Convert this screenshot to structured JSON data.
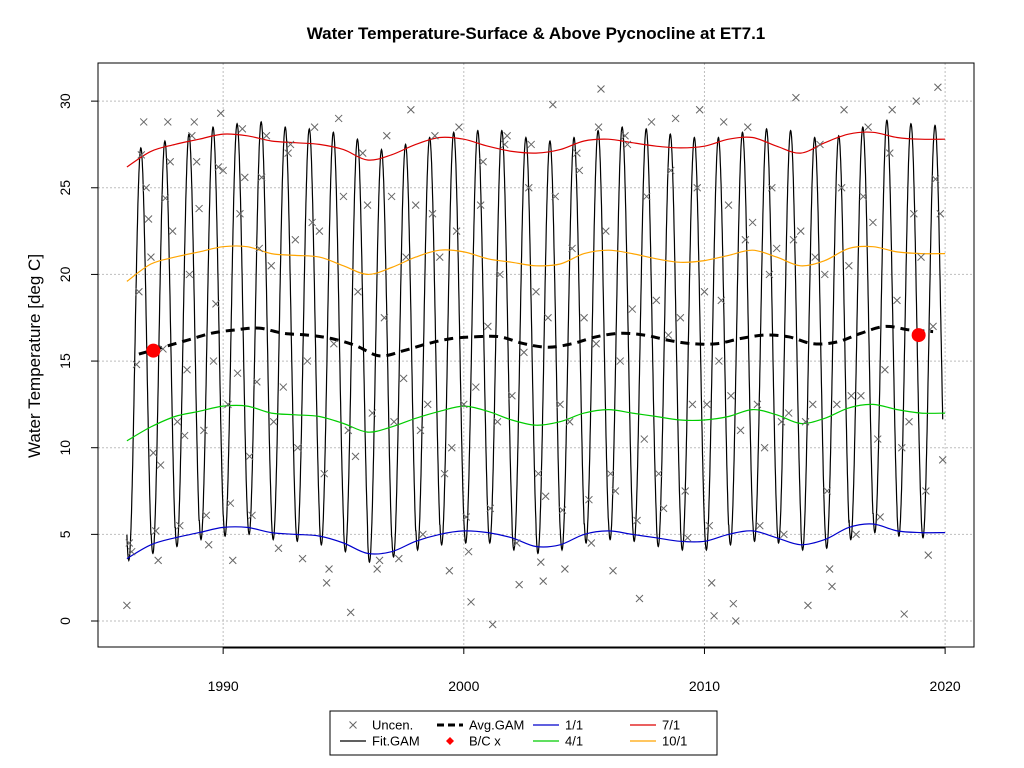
{
  "chart_data": {
    "type": "line",
    "title": "Water Temperature-Surface & Above Pycnocline at ET7.1",
    "xlabel": "",
    "ylabel": "Water Temperature [deg C]",
    "xlim": [
      1984.8,
      2021.2
    ],
    "ylim": [
      -1.5,
      32.2
    ],
    "x_ticks": [
      1990,
      2000,
      2010,
      2020
    ],
    "x_tick_labels": [
      "1990",
      "2000",
      "2010",
      "2020"
    ],
    "y_ticks": [
      0,
      5,
      10,
      15,
      20,
      25,
      30
    ],
    "y_tick_labels": [
      "0",
      "5",
      "10",
      "15",
      "20",
      "25",
      "30"
    ],
    "grid": true,
    "legend_position": "bottom-center",
    "colors": {
      "fit": "#000000",
      "avg": "#000000",
      "p1_1": "#0000cc",
      "p4_1": "#00cc00",
      "p7_1": "#dd0000",
      "p10_1": "#ffa500",
      "bc": "#ff0000",
      "uncen": "#666666",
      "grid": "#bebebe"
    },
    "legend": [
      {
        "key": "uncen",
        "label": "Uncen.",
        "symbol": "x",
        "color": "#666666"
      },
      {
        "key": "fit",
        "label": "Fit.GAM",
        "symbol": "line",
        "color": "#000000"
      },
      {
        "key": "avg",
        "label": "Avg.GAM",
        "symbol": "dashed",
        "color": "#000000"
      },
      {
        "key": "bc",
        "label": "B/C x",
        "symbol": "point",
        "color": "#ff0000"
      },
      {
        "key": "p1_1",
        "label": "1/1",
        "symbol": "line",
        "color": "#0000cc"
      },
      {
        "key": "p4_1",
        "label": "4/1",
        "symbol": "line",
        "color": "#00cc00"
      },
      {
        "key": "p7_1",
        "label": "7/1",
        "symbol": "line",
        "color": "#dd0000"
      },
      {
        "key": "p10_1",
        "label": "10/1",
        "symbol": "line",
        "color": "#ffa500"
      }
    ],
    "series": [
      {
        "name": "Avg.GAM",
        "x": [
          1986.5,
          1987.5,
          1988.5,
          1989.5,
          1990.5,
          1991.5,
          1992.5,
          1993.5,
          1994.5,
          1995.5,
          1996.5,
          1997.5,
          1998.5,
          1999.5,
          2000.5,
          2001.5,
          2002.5,
          2003.5,
          2004.5,
          2005.5,
          2006.5,
          2007.5,
          2008.5,
          2009.5,
          2010.5,
          2011.5,
          2012.5,
          2013.5,
          2014.5,
          2015.5,
          2016.5,
          2017.5,
          2018.5,
          2019.5
        ],
        "y": [
          15.4,
          15.8,
          16.2,
          16.6,
          16.8,
          16.9,
          16.6,
          16.5,
          16.3,
          15.9,
          15.3,
          15.6,
          16.0,
          16.3,
          16.4,
          16.4,
          16.0,
          15.8,
          16.0,
          16.4,
          16.6,
          16.5,
          16.2,
          16.0,
          16.0,
          16.3,
          16.5,
          16.4,
          16.0,
          16.1,
          16.6,
          17.0,
          16.8,
          16.7
        ]
      },
      {
        "name": "1/1",
        "x": [
          1986,
          1987,
          1988,
          1989,
          1990,
          1991,
          1992,
          1993,
          1994,
          1995,
          1996,
          1997,
          1998,
          1999,
          2000,
          2001,
          2002,
          2003,
          2004,
          2005,
          2006,
          2007,
          2008,
          2009,
          2010,
          2011,
          2012,
          2013,
          2014,
          2015,
          2016,
          2017,
          2018,
          2019,
          2020
        ],
        "y": [
          3.6,
          4.4,
          4.8,
          5.1,
          5.4,
          5.4,
          5.1,
          5.0,
          4.9,
          4.5,
          3.9,
          4.0,
          4.6,
          5.0,
          5.2,
          5.1,
          4.8,
          4.3,
          4.4,
          5.0,
          5.2,
          5.0,
          4.8,
          4.6,
          4.6,
          5.0,
          5.2,
          4.8,
          4.4,
          4.7,
          5.4,
          5.6,
          5.2,
          5.1,
          5.1
        ]
      },
      {
        "name": "4/1",
        "x": [
          1986,
          1987,
          1988,
          1989,
          1990,
          1991,
          1992,
          1993,
          1994,
          1995,
          1996,
          1997,
          1998,
          1999,
          2000,
          2001,
          2002,
          2003,
          2004,
          2005,
          2006,
          2007,
          2008,
          2009,
          2010,
          2011,
          2012,
          2013,
          2014,
          2015,
          2016,
          2017,
          2018,
          2019,
          2020
        ],
        "y": [
          10.4,
          11.2,
          11.8,
          12.1,
          12.4,
          12.4,
          12.0,
          11.9,
          11.8,
          11.4,
          10.9,
          11.2,
          11.7,
          12.1,
          12.4,
          12.1,
          11.6,
          11.3,
          11.5,
          12.0,
          12.2,
          12.0,
          11.8,
          11.6,
          11.6,
          11.8,
          12.2,
          11.9,
          11.4,
          11.7,
          12.3,
          12.5,
          12.2,
          12.0,
          12.0
        ]
      },
      {
        "name": "7/1",
        "x": [
          1986,
          1987,
          1988,
          1989,
          1990,
          1991,
          1992,
          1993,
          1994,
          1995,
          1996,
          1997,
          1998,
          1999,
          2000,
          2001,
          2002,
          2003,
          2004,
          2005,
          2006,
          2007,
          2008,
          2009,
          2010,
          2011,
          2012,
          2013,
          2014,
          2015,
          2016,
          2017,
          2018,
          2019,
          2020
        ],
        "y": [
          26.2,
          27.1,
          27.5,
          27.8,
          28.1,
          28.0,
          27.7,
          27.6,
          27.5,
          27.2,
          26.6,
          26.9,
          27.5,
          27.9,
          27.8,
          27.4,
          27.1,
          27.0,
          27.2,
          27.7,
          27.8,
          27.6,
          27.4,
          27.3,
          27.4,
          27.8,
          27.9,
          27.4,
          27.0,
          27.6,
          28.1,
          28.2,
          27.9,
          27.8,
          27.8
        ]
      },
      {
        "name": "10/1",
        "x": [
          1986,
          1987,
          1988,
          1989,
          1990,
          1991,
          1992,
          1993,
          1994,
          1995,
          1996,
          1997,
          1998,
          1999,
          2000,
          2001,
          2002,
          2003,
          2004,
          2005,
          2006,
          2007,
          2008,
          2009,
          2010,
          2011,
          2012,
          2013,
          2014,
          2015,
          2016,
          2017,
          2018,
          2019,
          2020
        ],
        "y": [
          19.6,
          20.6,
          21.0,
          21.3,
          21.6,
          21.6,
          21.2,
          21.1,
          21.0,
          20.5,
          20.0,
          20.4,
          21.0,
          21.4,
          21.3,
          20.9,
          20.7,
          20.5,
          20.6,
          21.2,
          21.4,
          21.2,
          20.9,
          20.7,
          20.8,
          21.1,
          21.4,
          21.0,
          20.5,
          20.8,
          21.5,
          21.6,
          21.3,
          21.2,
          21.2
        ]
      },
      {
        "name": "Fit.GAM",
        "x_start": 1986.0,
        "x_end": 2019.9,
        "mean": [
          15.4,
          15.8,
          16.2,
          16.6,
          16.8,
          16.9,
          16.6,
          16.5,
          16.3,
          15.9,
          15.3,
          15.6,
          16.0,
          16.3,
          16.4,
          16.4,
          16.0,
          15.8,
          16.0,
          16.4,
          16.6,
          16.5,
          16.2,
          16.0,
          16.0,
          16.3,
          16.5,
          16.4,
          16.0,
          16.1,
          16.6,
          17.0,
          16.8,
          16.7
        ],
        "amplitude": 11.9,
        "peak_phase": 0.58
      }
    ],
    "bc_points": [
      {
        "x": 1987.1,
        "y": 15.6
      },
      {
        "x": 2018.9,
        "y": 16.5
      }
    ],
    "uncensored_points": [
      [
        1986.0,
        0.9
      ],
      [
        1986.1,
        4.5
      ],
      [
        1986.2,
        4.0
      ],
      [
        1986.4,
        14.8
      ],
      [
        1986.5,
        19.0
      ],
      [
        1986.6,
        26.9
      ],
      [
        1986.7,
        28.8
      ],
      [
        1986.8,
        25.0
      ],
      [
        1986.9,
        23.2
      ],
      [
        1987.0,
        21.0
      ],
      [
        1987.1,
        9.7
      ],
      [
        1987.2,
        5.2
      ],
      [
        1987.3,
        3.5
      ],
      [
        1987.4,
        9.0
      ],
      [
        1987.5,
        15.7
      ],
      [
        1987.6,
        24.4
      ],
      [
        1987.7,
        28.8
      ],
      [
        1987.8,
        26.5
      ],
      [
        1987.9,
        22.5
      ],
      [
        1988.1,
        11.5
      ],
      [
        1988.2,
        5.5
      ],
      [
        1988.4,
        10.7
      ],
      [
        1988.5,
        14.5
      ],
      [
        1988.6,
        20.0
      ],
      [
        1988.7,
        28.0
      ],
      [
        1988.8,
        28.8
      ],
      [
        1988.9,
        26.5
      ],
      [
        1989.0,
        23.8
      ],
      [
        1989.2,
        11.0
      ],
      [
        1989.3,
        6.1
      ],
      [
        1989.4,
        4.4
      ],
      [
        1989.6,
        15.0
      ],
      [
        1989.7,
        18.3
      ],
      [
        1989.8,
        26.2
      ],
      [
        1989.9,
        29.3
      ],
      [
        1990.0,
        26.0
      ],
      [
        1990.2,
        12.5
      ],
      [
        1990.3,
        6.8
      ],
      [
        1990.4,
        3.5
      ],
      [
        1990.6,
        14.3
      ],
      [
        1990.7,
        23.5
      ],
      [
        1990.8,
        28.4
      ],
      [
        1990.9,
        25.6
      ],
      [
        1991.1,
        9.5
      ],
      [
        1991.2,
        6.1
      ],
      [
        1991.4,
        13.8
      ],
      [
        1991.5,
        21.5
      ],
      [
        1991.6,
        25.6
      ],
      [
        1991.8,
        28.0
      ],
      [
        1992.0,
        20.5
      ],
      [
        1992.1,
        11.5
      ],
      [
        1992.3,
        4.2
      ],
      [
        1992.5,
        13.5
      ],
      [
        1992.7,
        27.0
      ],
      [
        1992.8,
        27.5
      ],
      [
        1993.0,
        22.0
      ],
      [
        1993.1,
        10.0
      ],
      [
        1993.3,
        3.6
      ],
      [
        1993.5,
        15.0
      ],
      [
        1993.7,
        23.0
      ],
      [
        1993.8,
        28.5
      ],
      [
        1994.0,
        22.5
      ],
      [
        1994.2,
        8.5
      ],
      [
        1994.3,
        2.2
      ],
      [
        1994.4,
        3.0
      ],
      [
        1994.6,
        16.0
      ],
      [
        1994.8,
        29.0
      ],
      [
        1995.0,
        24.5
      ],
      [
        1995.2,
        11.0
      ],
      [
        1995.3,
        0.5
      ],
      [
        1995.5,
        9.5
      ],
      [
        1995.6,
        19.0
      ],
      [
        1995.8,
        27.0
      ],
      [
        1996.0,
        24.0
      ],
      [
        1996.2,
        12.0
      ],
      [
        1996.4,
        3.0
      ],
      [
        1996.5,
        3.5
      ],
      [
        1996.7,
        17.5
      ],
      [
        1996.8,
        28.0
      ],
      [
        1997.0,
        24.5
      ],
      [
        1997.1,
        11.5
      ],
      [
        1997.3,
        3.6
      ],
      [
        1997.5,
        14.0
      ],
      [
        1997.6,
        21.0
      ],
      [
        1997.8,
        29.5
      ],
      [
        1998.0,
        24.0
      ],
      [
        1998.2,
        11.0
      ],
      [
        1998.3,
        5.0
      ],
      [
        1998.5,
        12.5
      ],
      [
        1998.7,
        23.5
      ],
      [
        1998.8,
        28.0
      ],
      [
        1999.0,
        21.0
      ],
      [
        1999.2,
        8.5
      ],
      [
        1999.4,
        2.9
      ],
      [
        1999.5,
        10.0
      ],
      [
        1999.7,
        22.5
      ],
      [
        1999.8,
        28.5
      ],
      [
        2000.0,
        12.5
      ],
      [
        2000.1,
        6.0
      ],
      [
        2000.2,
        4.0
      ],
      [
        2000.3,
        1.1
      ],
      [
        2000.5,
        13.5
      ],
      [
        2000.7,
        24.0
      ],
      [
        2000.8,
        26.5
      ],
      [
        2001.0,
        17.0
      ],
      [
        2001.1,
        6.5
      ],
      [
        2001.2,
        -0.2
      ],
      [
        2001.4,
        11.5
      ],
      [
        2001.5,
        20.0
      ],
      [
        2001.7,
        27.5
      ],
      [
        2001.8,
        28.0
      ],
      [
        2002.0,
        13.0
      ],
      [
        2002.2,
        4.5
      ],
      [
        2002.3,
        2.1
      ],
      [
        2002.5,
        15.5
      ],
      [
        2002.7,
        25.0
      ],
      [
        2002.8,
        27.5
      ],
      [
        2003.0,
        19.0
      ],
      [
        2003.1,
        8.5
      ],
      [
        2003.2,
        3.4
      ],
      [
        2003.3,
        2.3
      ],
      [
        2003.4,
        7.2
      ],
      [
        2003.5,
        17.5
      ],
      [
        2003.7,
        29.8
      ],
      [
        2003.8,
        24.5
      ],
      [
        2004.0,
        12.5
      ],
      [
        2004.1,
        6.4
      ],
      [
        2004.2,
        3.0
      ],
      [
        2004.4,
        11.5
      ],
      [
        2004.5,
        21.5
      ],
      [
        2004.7,
        27.0
      ],
      [
        2004.8,
        26.0
      ],
      [
        2005.0,
        17.5
      ],
      [
        2005.2,
        7.0
      ],
      [
        2005.3,
        4.5
      ],
      [
        2005.5,
        16.0
      ],
      [
        2005.6,
        28.5
      ],
      [
        2005.7,
        30.7
      ],
      [
        2005.9,
        22.5
      ],
      [
        2006.1,
        8.5
      ],
      [
        2006.2,
        2.9
      ],
      [
        2006.3,
        7.5
      ],
      [
        2006.5,
        15.0
      ],
      [
        2006.7,
        28.0
      ],
      [
        2006.8,
        27.5
      ],
      [
        2007.0,
        18.0
      ],
      [
        2007.2,
        5.8
      ],
      [
        2007.3,
        1.3
      ],
      [
        2007.5,
        10.5
      ],
      [
        2007.6,
        24.5
      ],
      [
        2007.8,
        28.8
      ],
      [
        2008.0,
        18.5
      ],
      [
        2008.1,
        8.5
      ],
      [
        2008.3,
        6.5
      ],
      [
        2008.5,
        16.5
      ],
      [
        2008.6,
        26.0
      ],
      [
        2008.8,
        29.0
      ],
      [
        2009.0,
        17.5
      ],
      [
        2009.2,
        7.5
      ],
      [
        2009.3,
        4.8
      ],
      [
        2009.5,
        12.5
      ],
      [
        2009.7,
        25.0
      ],
      [
        2009.8,
        29.5
      ],
      [
        2010.0,
        19.0
      ],
      [
        2010.1,
        12.5
      ],
      [
        2010.2,
        5.5
      ],
      [
        2010.3,
        2.2
      ],
      [
        2010.4,
        0.3
      ],
      [
        2010.6,
        15.0
      ],
      [
        2010.7,
        18.5
      ],
      [
        2010.8,
        28.8
      ],
      [
        2011.0,
        24.0
      ],
      [
        2011.1,
        13.0
      ],
      [
        2011.2,
        1.0
      ],
      [
        2011.3,
        0.0
      ],
      [
        2011.5,
        11.0
      ],
      [
        2011.7,
        22.0
      ],
      [
        2011.8,
        28.5
      ],
      [
        2012.0,
        23.0
      ],
      [
        2012.2,
        12.5
      ],
      [
        2012.3,
        5.5
      ],
      [
        2012.5,
        10.0
      ],
      [
        2012.7,
        20.0
      ],
      [
        2012.8,
        25.0
      ],
      [
        2013.0,
        21.5
      ],
      [
        2013.2,
        11.5
      ],
      [
        2013.3,
        5.0
      ],
      [
        2013.5,
        12.0
      ],
      [
        2013.7,
        22.0
      ],
      [
        2013.8,
        30.2
      ],
      [
        2014.0,
        22.5
      ],
      [
        2014.2,
        11.5
      ],
      [
        2014.3,
        0.9
      ],
      [
        2014.5,
        12.5
      ],
      [
        2014.6,
        21.0
      ],
      [
        2014.8,
        27.5
      ],
      [
        2015.0,
        20.0
      ],
      [
        2015.1,
        7.5
      ],
      [
        2015.2,
        3.0
      ],
      [
        2015.3,
        2.0
      ],
      [
        2015.5,
        12.5
      ],
      [
        2015.7,
        25.0
      ],
      [
        2015.8,
        29.5
      ],
      [
        2016.0,
        20.5
      ],
      [
        2016.1,
        13.0
      ],
      [
        2016.3,
        5.0
      ],
      [
        2016.5,
        13.0
      ],
      [
        2016.6,
        24.5
      ],
      [
        2016.8,
        28.5
      ],
      [
        2017.0,
        23.0
      ],
      [
        2017.2,
        10.5
      ],
      [
        2017.3,
        6.0
      ],
      [
        2017.5,
        14.5
      ],
      [
        2017.7,
        27.0
      ],
      [
        2017.8,
        29.5
      ],
      [
        2018.0,
        18.5
      ],
      [
        2018.2,
        10.0
      ],
      [
        2018.3,
        0.4
      ],
      [
        2018.5,
        11.5
      ],
      [
        2018.7,
        23.5
      ],
      [
        2018.8,
        30.0
      ],
      [
        2019.0,
        21.0
      ],
      [
        2019.2,
        7.5
      ],
      [
        2019.3,
        3.8
      ],
      [
        2019.5,
        17.0
      ],
      [
        2019.6,
        25.5
      ],
      [
        2019.7,
        30.8
      ],
      [
        2019.8,
        23.5
      ],
      [
        2019.9,
        9.3
      ]
    ]
  }
}
